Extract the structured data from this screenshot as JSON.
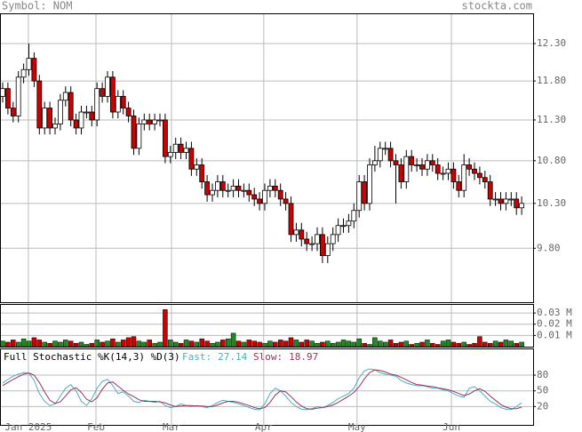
{
  "header": {
    "symbol": "Symbol: NOM",
    "site": "stockta.com"
  },
  "chart_data": [
    {
      "type": "candlestick",
      "log_scale": true,
      "ylim": [
        9.23,
        12.72
      ],
      "yticks": [
        {
          "value": 12.3,
          "label": "12.30"
        },
        {
          "value": 11.8,
          "label": "11.80"
        },
        {
          "value": 11.3,
          "label": "11.30"
        },
        {
          "value": 10.8,
          "label": "10.80"
        },
        {
          "value": 10.3,
          "label": "10.30"
        },
        {
          "value": 9.8,
          "label": "9.80"
        }
      ],
      "up_color": "#ffffff",
      "down_color": "#cc0000",
      "open": [
        11.6,
        11.7,
        11.45,
        11.35,
        11.85,
        11.95,
        12.1,
        11.8,
        11.2,
        11.45,
        11.2,
        11.25,
        11.55,
        11.65,
        11.3,
        11.2,
        11.4,
        11.4,
        11.3,
        11.7,
        11.6,
        11.85,
        11.4,
        11.6,
        11.45,
        11.35,
        10.95,
        11.25,
        11.3,
        11.25,
        11.3,
        11.3,
        10.85,
        10.9,
        11.0,
        10.9,
        10.95,
        10.7,
        10.75,
        10.55,
        10.4,
        10.45,
        10.55,
        10.45,
        10.45,
        10.5,
        10.45,
        10.45,
        10.4,
        10.35,
        10.3,
        10.45,
        10.5,
        10.45,
        10.35,
        10.3,
        9.95,
        10.0,
        9.9,
        9.85,
        9.85,
        9.95,
        9.72,
        9.85,
        9.95,
        10.05,
        10.05,
        10.1,
        10.22,
        10.55,
        10.3,
        10.75,
        10.8,
        10.95,
        10.95,
        10.8,
        10.75,
        10.55,
        10.85,
        10.75,
        10.75,
        10.7,
        10.8,
        10.75,
        10.65,
        10.65,
        10.7,
        10.55,
        10.45,
        10.75,
        10.7,
        10.65,
        10.6,
        10.55,
        10.35,
        10.35,
        10.3,
        10.35,
        10.35,
        10.25
      ],
      "high": [
        11.78,
        11.78,
        11.53,
        11.93,
        12.03,
        12.3,
        12.18,
        11.88,
        11.53,
        11.53,
        11.33,
        11.63,
        11.73,
        11.73,
        11.38,
        11.48,
        11.48,
        11.48,
        11.78,
        11.78,
        11.93,
        11.93,
        11.68,
        11.68,
        11.53,
        11.43,
        11.33,
        11.38,
        11.38,
        11.38,
        11.38,
        11.38,
        10.98,
        11.08,
        11.08,
        11.03,
        11.03,
        10.83,
        10.83,
        10.63,
        10.53,
        10.63,
        10.63,
        10.53,
        10.58,
        10.58,
        10.53,
        10.53,
        10.48,
        10.43,
        10.53,
        10.58,
        10.58,
        10.53,
        10.43,
        10.38,
        10.08,
        10.08,
        9.98,
        9.93,
        10.03,
        10.03,
        9.93,
        10.03,
        10.13,
        10.13,
        10.18,
        10.3,
        10.63,
        10.63,
        10.83,
        10.98,
        11.03,
        11.03,
        11.03,
        10.88,
        10.83,
        10.93,
        10.93,
        10.83,
        10.83,
        10.88,
        10.88,
        10.83,
        10.73,
        10.78,
        10.78,
        10.63,
        10.88,
        10.83,
        10.78,
        10.73,
        10.68,
        10.63,
        10.43,
        10.43,
        10.43,
        10.43,
        10.43,
        10.38
      ],
      "low": [
        11.52,
        11.37,
        11.27,
        11.27,
        11.77,
        11.87,
        11.72,
        11.12,
        11.12,
        11.12,
        11.12,
        11.17,
        11.47,
        11.22,
        11.12,
        11.12,
        11.32,
        11.22,
        11.22,
        11.52,
        11.52,
        11.32,
        11.32,
        11.37,
        11.27,
        10.87,
        10.87,
        11.17,
        11.17,
        11.17,
        11.22,
        10.77,
        10.77,
        10.82,
        10.82,
        10.82,
        10.62,
        10.62,
        10.47,
        10.32,
        10.32,
        10.37,
        10.37,
        10.37,
        10.37,
        10.37,
        10.37,
        10.32,
        10.27,
        10.22,
        10.22,
        10.37,
        10.37,
        10.27,
        10.22,
        9.87,
        9.87,
        9.82,
        9.77,
        9.77,
        9.77,
        9.64,
        9.64,
        9.77,
        9.87,
        9.97,
        9.97,
        10.02,
        10.14,
        10.22,
        10.22,
        10.67,
        10.72,
        10.87,
        10.72,
        10.3,
        10.47,
        10.47,
        10.67,
        10.67,
        10.62,
        10.62,
        10.67,
        10.57,
        10.57,
        10.57,
        10.47,
        10.37,
        10.37,
        10.62,
        10.57,
        10.52,
        10.47,
        10.27,
        10.27,
        10.22,
        10.22,
        10.27,
        10.17,
        10.17
      ],
      "close": [
        11.7,
        11.45,
        11.35,
        11.85,
        11.95,
        12.1,
        11.8,
        11.2,
        11.45,
        11.2,
        11.25,
        11.55,
        11.65,
        11.3,
        11.2,
        11.4,
        11.4,
        11.3,
        11.7,
        11.6,
        11.85,
        11.4,
        11.6,
        11.45,
        11.35,
        10.95,
        11.25,
        11.3,
        11.25,
        11.3,
        11.3,
        10.85,
        10.9,
        11.0,
        10.9,
        10.95,
        10.7,
        10.75,
        10.55,
        10.4,
        10.45,
        10.55,
        10.45,
        10.45,
        10.5,
        10.45,
        10.45,
        10.4,
        10.35,
        10.3,
        10.45,
        10.5,
        10.45,
        10.35,
        10.3,
        9.95,
        10.0,
        9.9,
        9.85,
        9.85,
        9.95,
        9.72,
        9.85,
        9.95,
        10.05,
        10.05,
        10.1,
        10.22,
        10.55,
        10.3,
        10.75,
        10.8,
        10.95,
        10.95,
        10.8,
        10.75,
        10.55,
        10.85,
        10.75,
        10.75,
        10.7,
        10.8,
        10.75,
        10.65,
        10.65,
        10.7,
        10.55,
        10.45,
        10.75,
        10.7,
        10.65,
        10.6,
        10.55,
        10.35,
        10.35,
        10.3,
        10.35,
        10.35,
        10.25,
        10.3
      ]
    },
    {
      "type": "bar",
      "up_color": "#228822",
      "down_color": "#cc0000",
      "ylim": [
        0,
        0.038
      ],
      "yticks": [
        {
          "value": 0.03,
          "label": "0.03 M"
        },
        {
          "value": 0.02,
          "label": "0.02 M"
        },
        {
          "value": 0.01,
          "label": "0.01 M"
        }
      ],
      "values": [
        0.005,
        0.004,
        0.006,
        0.004,
        0.007,
        0.005,
        0.008,
        0.006,
        0.004,
        0.003,
        0.005,
        0.004,
        0.006,
        0.005,
        0.003,
        0.004,
        0.002,
        0.003,
        0.006,
        0.004,
        0.005,
        0.007,
        0.004,
        0.006,
        0.008,
        0.009,
        0.005,
        0.004,
        0.006,
        0.003,
        0.004,
        0.033,
        0.006,
        0.004,
        0.003,
        0.006,
        0.005,
        0.004,
        0.007,
        0.005,
        0.003,
        0.004,
        0.006,
        0.007,
        0.012,
        0.005,
        0.004,
        0.006,
        0.005,
        0.004,
        0.003,
        0.005,
        0.004,
        0.006,
        0.005,
        0.008,
        0.006,
        0.004,
        0.006,
        0.005,
        0.003,
        0.004,
        0.005,
        0.003,
        0.004,
        0.006,
        0.005,
        0.004,
        0.007,
        0.003,
        0.002,
        0.008,
        0.005,
        0.004,
        0.006,
        0.003,
        0.004,
        0.005,
        0.002,
        0.003,
        0.004,
        0.006,
        0.003,
        0.002,
        0.005,
        0.006,
        0.004,
        0.003,
        0.004,
        0.002,
        0.003,
        0.009,
        0.004,
        0.003,
        0.005,
        0.004,
        0.006,
        0.005,
        0.003,
        0.004
      ]
    },
    {
      "type": "line",
      "title": "Full Stochastic %K(14,3) %D(3)",
      "ylim": [
        -15,
        131
      ],
      "yticks": [
        80,
        50,
        20
      ],
      "xticks": [
        {
          "value": 4.9,
          "label": "Jan 2025"
        },
        {
          "value": 17.8,
          "label": "Feb"
        },
        {
          "value": 32.2,
          "label": "Mar"
        },
        {
          "value": 49.8,
          "label": "Apr"
        },
        {
          "value": 67.6,
          "label": "May"
        },
        {
          "value": 85.6,
          "label": "Jun"
        }
      ],
      "series": [
        {
          "name": "Fast:",
          "color": "#4aaec4",
          "values": [
            65,
            72,
            78,
            82,
            85,
            84,
            70,
            45,
            30,
            22,
            25,
            40,
            55,
            62,
            50,
            30,
            22,
            35,
            55,
            68,
            72,
            60,
            45,
            48,
            40,
            30,
            28,
            32,
            30,
            28,
            30,
            22,
            18,
            20,
            25,
            22,
            20,
            22,
            20,
            18,
            22,
            28,
            32,
            30,
            28,
            25,
            22,
            18,
            15,
            14,
            25,
            45,
            55,
            50,
            40,
            28,
            20,
            15,
            14,
            16,
            20,
            18,
            22,
            28,
            35,
            40,
            45,
            55,
            75,
            88,
            92,
            90,
            85,
            82,
            80,
            78,
            70,
            65,
            62,
            60,
            60,
            58,
            55,
            55,
            52,
            50,
            45,
            40,
            38,
            55,
            58,
            50,
            40,
            30,
            25,
            18,
            15,
            14,
            20,
            27.14
          ]
        },
        {
          "name": "Slow:",
          "color": "#993355",
          "values": [
            60,
            66,
            72,
            77,
            82,
            84,
            80,
            66,
            48,
            32,
            26,
            29,
            40,
            52,
            56,
            47,
            34,
            29,
            37,
            53,
            65,
            67,
            59,
            51,
            44,
            39,
            33,
            30,
            30,
            30,
            29,
            27,
            23,
            20,
            21,
            22,
            22,
            21,
            21,
            20,
            20,
            23,
            27,
            30,
            30,
            28,
            25,
            22,
            18,
            16,
            18,
            28,
            42,
            50,
            48,
            39,
            29,
            21,
            16,
            15,
            17,
            18,
            20,
            23,
            28,
            34,
            40,
            47,
            58,
            73,
            85,
            90,
            89,
            86,
            82,
            80,
            76,
            71,
            66,
            62,
            61,
            59,
            58,
            56,
            54,
            52,
            49,
            45,
            41,
            44,
            50,
            54,
            49,
            40,
            32,
            24,
            19,
            16,
            16,
            18.97
          ]
        }
      ]
    }
  ]
}
